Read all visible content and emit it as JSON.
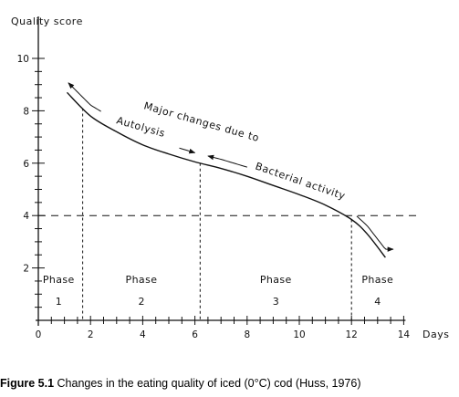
{
  "chart_data": {
    "type": "line",
    "ylabel": "Quality score",
    "xlabel": "Days",
    "xlim": [
      0,
      14
    ],
    "ylim": [
      0,
      10
    ],
    "x_ticks": [
      0,
      2,
      4,
      6,
      8,
      10,
      12,
      14
    ],
    "y_ticks": [
      2,
      4,
      6,
      8,
      10
    ],
    "series": [
      {
        "x": [
          1.1,
          2,
          3,
          4,
          5,
          6,
          7,
          8,
          9,
          10,
          11,
          12,
          12.6,
          13.3
        ],
        "y": [
          8.7,
          7.8,
          7.2,
          6.7,
          6.35,
          6.05,
          5.8,
          5.5,
          5.15,
          4.8,
          4.4,
          3.85,
          3.3,
          2.4
        ]
      }
    ],
    "reference_line_y": 4,
    "phase_boundaries": [
      1.7,
      6.2,
      12
    ],
    "phases": [
      {
        "label": "Phase",
        "number": "1",
        "x_start": 0,
        "x_end": 1.7
      },
      {
        "label": "Phase",
        "number": "2",
        "x_start": 1.7,
        "x_end": 6.2
      },
      {
        "label": "Phase",
        "number": "3",
        "x_start": 6.2,
        "x_end": 12
      },
      {
        "label": "Phase",
        "number": "4",
        "x_start": 12,
        "x_end": 14
      }
    ],
    "annotations": {
      "major": "Major changes due to",
      "autolysis": "Autolysis",
      "bacterial": "Bacterial activity"
    }
  },
  "caption": {
    "figure_label": "Figure 5.1",
    "text": " Changes in the eating quality of iced (0°C) cod (Huss, 1976)"
  }
}
